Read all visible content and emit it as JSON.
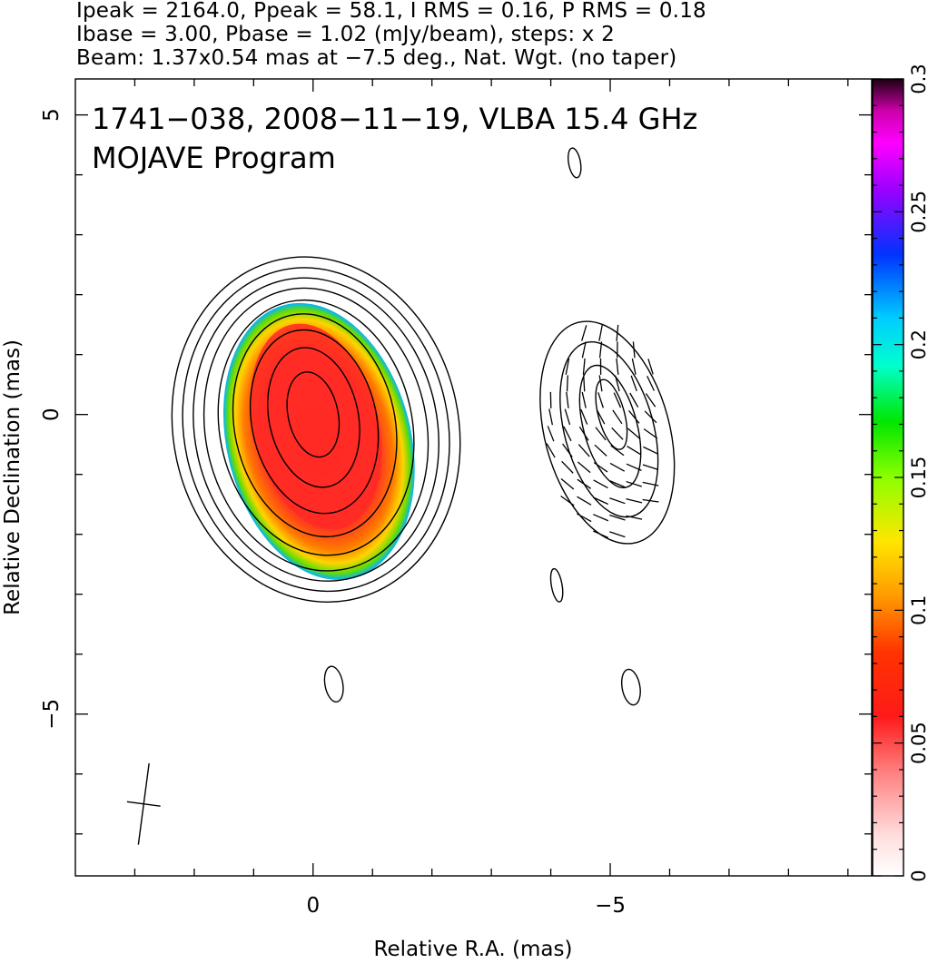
{
  "header": {
    "line1": "Ipeak = 2164.0, Ppeak = 58.1, I RMS = 0.16, P RMS = 0.18",
    "line2": "Ibase = 3.00, Pbase = 1.02 (mJy/beam), steps: x 2",
    "line3": "Beam: 1.37x0.54 mas at −7.5 deg., Nat. Wgt. (no taper)"
  },
  "chart_data": {
    "type": "heatmap",
    "title": "1741−038, 2008−11−19, VLBA 15.4 GHz",
    "subtitle": "MOJAVE Program",
    "xlabel": "Relative R.A. (mas)",
    "ylabel": "Relative Declination (mas)",
    "xlim": [
      4.0,
      -9.4
    ],
    "ylim": [
      -7.7,
      5.6
    ],
    "x_ticks": [
      {
        "value": 0,
        "label": "0"
      },
      {
        "value": -5,
        "label": "−5"
      }
    ],
    "y_ticks": [
      {
        "value": 5,
        "label": "5"
      },
      {
        "value": 0,
        "label": "0"
      },
      {
        "value": -5,
        "label": "−5"
      }
    ],
    "colorbar": {
      "range": [
        0,
        0.3
      ],
      "ticks": [
        {
          "value": 0,
          "label": "0"
        },
        {
          "value": 0.05,
          "label": "0.05"
        },
        {
          "value": 0.1,
          "label": "0.1"
        },
        {
          "value": 0.15,
          "label": "0.15"
        },
        {
          "value": 0.2,
          "label": "0.2"
        },
        {
          "value": 0.25,
          "label": "0.25"
        },
        {
          "value": 0.3,
          "label": "0.3"
        }
      ]
    },
    "left_panel": {
      "center": [
        0.0,
        0.0
      ],
      "core_fraction": 0.04,
      "edge_fraction": 0.11,
      "contours": [
        {
          "cx": -0.05,
          "cy": -0.25,
          "rx": 2.4,
          "ry": 2.9,
          "rot": -12
        },
        {
          "cx": -0.05,
          "cy": -0.25,
          "rx": 2.22,
          "ry": 2.72,
          "rot": -12
        },
        {
          "cx": -0.05,
          "cy": -0.25,
          "rx": 2.04,
          "ry": 2.55,
          "rot": -12
        },
        {
          "cx": -0.05,
          "cy": -0.25,
          "rx": 1.86,
          "ry": 2.38,
          "rot": -12
        },
        {
          "cx": -0.05,
          "cy": -0.22,
          "rx": 1.62,
          "ry": 2.15,
          "rot": -12
        },
        {
          "cx": -0.03,
          "cy": -0.18,
          "rx": 1.35,
          "ry": 1.88,
          "rot": -12
        },
        {
          "cx": -0.02,
          "cy": -0.12,
          "rx": 1.05,
          "ry": 1.55,
          "rot": -12
        },
        {
          "cx": -0.01,
          "cy": -0.05,
          "rx": 0.75,
          "ry": 1.18,
          "rot": -12
        },
        {
          "cx": 0.0,
          "cy": 0.0,
          "rx": 0.42,
          "ry": 0.72,
          "rot": -12
        }
      ]
    },
    "right_panel": {
      "contours": [
        {
          "cx": -4.95,
          "cy": -0.3,
          "rx": 1.05,
          "ry": 1.9,
          "rot": -15
        },
        {
          "cx": -4.98,
          "cy": -0.25,
          "rx": 0.75,
          "ry": 1.5,
          "rot": -15
        },
        {
          "cx": -5.0,
          "cy": -0.2,
          "rx": 0.45,
          "ry": 1.05,
          "rot": -15
        },
        {
          "cx": -5.02,
          "cy": 0.0,
          "rx": 0.22,
          "ry": 0.6,
          "rot": -15
        }
      ]
    },
    "isolated_contours": [
      {
        "cx": -4.4,
        "cy": 4.2,
        "rx": 0.1,
        "ry": 0.25,
        "rot": -10
      },
      {
        "cx": -4.1,
        "cy": -2.85,
        "rx": 0.09,
        "ry": 0.28,
        "rot": -10
      },
      {
        "cx": -0.35,
        "cy": -4.5,
        "rx": 0.15,
        "ry": 0.3,
        "rot": -10
      },
      {
        "cx": -5.35,
        "cy": -4.55,
        "rx": 0.15,
        "ry": 0.3,
        "rot": -10
      }
    ],
    "beam": {
      "major": 1.37,
      "minor": 0.54,
      "pa_deg": -7.5,
      "center": [
        2.85,
        -6.5
      ]
    },
    "grid": false
  }
}
